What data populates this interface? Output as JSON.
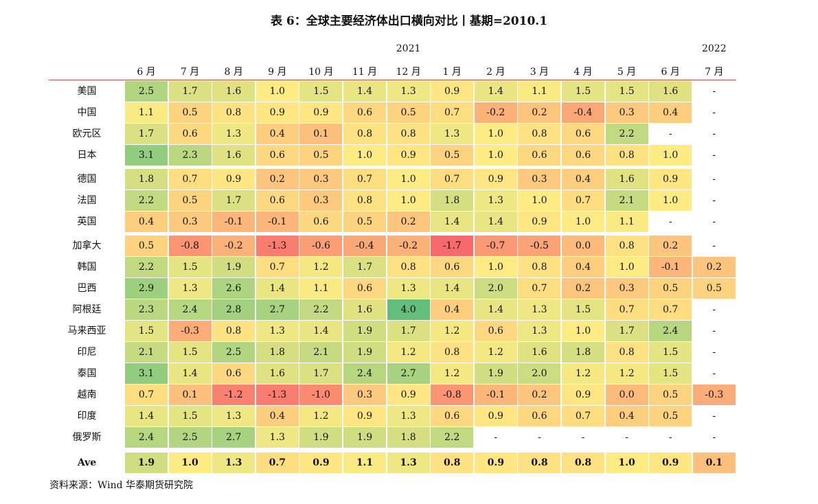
{
  "title": "表 6：全球主要经济体出口横向对比丨基期=2010.1",
  "years": [
    {
      "label": "2021",
      "col": 6
    },
    {
      "label": "2022",
      "col": 13
    }
  ],
  "months": [
    "6 月",
    "7 月",
    "8 月",
    "9 月",
    "10 月",
    "11 月",
    "12 月",
    "1 月",
    "2 月",
    "3 月",
    "4 月",
    "5 月",
    "6 月",
    "7 月"
  ],
  "rows": [
    {
      "name": "美国",
      "values": [
        "2.5",
        "1.7",
        "1.6",
        "1.0",
        "1.5",
        "1.4",
        "1.3",
        "0.9",
        "1.4",
        "1.1",
        "1.5",
        "1.5",
        "1.6",
        "-"
      ]
    },
    {
      "name": "中国",
      "values": [
        "1.1",
        "0.5",
        "0.8",
        "0.9",
        "0.9",
        "0.6",
        "0.5",
        "0.7",
        "-0.2",
        "0.2",
        "-0.4",
        "0.3",
        "0.4",
        "-"
      ]
    },
    {
      "name": "欧元区",
      "values": [
        "1.7",
        "0.6",
        "1.3",
        "0.4",
        "0.1",
        "0.8",
        "0.8",
        "1.3",
        "1.0",
        "0.8",
        "0.6",
        "2.2",
        "-",
        "-"
      ]
    },
    {
      "name": "日本",
      "values": [
        "3.1",
        "2.3",
        "1.6",
        "0.6",
        "0.5",
        "1.0",
        "0.9",
        "0.5",
        "1.0",
        "0.6",
        "0.6",
        "0.8",
        "1.0",
        "-"
      ]
    },
    {
      "name": "德国",
      "values": [
        "1.8",
        "0.7",
        "0.9",
        "0.2",
        "0.3",
        "0.7",
        "1.0",
        "0.7",
        "0.9",
        "0.3",
        "0.4",
        "1.6",
        "0.9",
        "-"
      ]
    },
    {
      "name": "法国",
      "values": [
        "2.2",
        "0.5",
        "1.7",
        "0.6",
        "0.3",
        "0.8",
        "1.0",
        "1.8",
        "1.3",
        "1.0",
        "0.7",
        "2.1",
        "1.0",
        "-"
      ]
    },
    {
      "name": "英国",
      "values": [
        "0.4",
        "0.3",
        "-0.1",
        "-0.1",
        "0.6",
        "0.5",
        "0.2",
        "1.4",
        "1.4",
        "0.9",
        "1.0",
        "1.1",
        "-",
        "-"
      ]
    },
    {
      "name": "加拿大",
      "values": [
        "0.5",
        "-0.8",
        "-0.2",
        "-1.3",
        "-0.6",
        "-0.4",
        "-0.2",
        "-1.7",
        "-0.7",
        "-0.5",
        "0.0",
        "0.8",
        "0.2",
        "-"
      ]
    },
    {
      "name": "韩国",
      "values": [
        "2.2",
        "1.5",
        "1.9",
        "0.7",
        "1.2",
        "1.7",
        "0.8",
        "0.6",
        "1.0",
        "0.8",
        "0.4",
        "1.0",
        "-0.1",
        "0.2"
      ]
    },
    {
      "name": "巴西",
      "values": [
        "2.9",
        "1.3",
        "2.6",
        "1.4",
        "1.1",
        "0.6",
        "1.3",
        "1.4",
        "2.0",
        "0.7",
        "0.2",
        "0.3",
        "0.5",
        "0.5"
      ]
    },
    {
      "name": "阿根廷",
      "values": [
        "2.3",
        "2.4",
        "2.8",
        "2.7",
        "2.2",
        "1.6",
        "4.0",
        "0.4",
        "1.4",
        "1.3",
        "1.5",
        "0.7",
        "0.7",
        "-"
      ]
    },
    {
      "name": "马来西亚",
      "values": [
        "1.5",
        "-0.3",
        "0.8",
        "1.3",
        "1.4",
        "1.9",
        "1.7",
        "1.2",
        "0.6",
        "1.3",
        "1.0",
        "1.7",
        "2.4",
        "-"
      ]
    },
    {
      "name": "印尼",
      "values": [
        "2.1",
        "1.5",
        "2.5",
        "1.8",
        "2.1",
        "1.9",
        "1.2",
        "0.8",
        "1.2",
        "1.6",
        "1.8",
        "0.8",
        "1.5",
        "-"
      ]
    },
    {
      "name": "泰国",
      "values": [
        "3.1",
        "1.4",
        "0.6",
        "1.6",
        "1.7",
        "2.4",
        "2.7",
        "1.2",
        "1.9",
        "2.0",
        "1.2",
        "1.2",
        "1.5",
        "-"
      ]
    },
    {
      "name": "越南",
      "values": [
        "0.7",
        "0.1",
        "-1.2",
        "-1.3",
        "-1.0",
        "0.3",
        "0.9",
        "-0.8",
        "-0.1",
        "0.2",
        "0.9",
        "0.0",
        "0.5",
        "-0.3"
      ]
    },
    {
      "name": "印度",
      "values": [
        "1.4",
        "1.5",
        "1.3",
        "0.4",
        "1.2",
        "0.9",
        "1.3",
        "0.6",
        "0.9",
        "0.6",
        "0.7",
        "0.4",
        "0.5",
        "-"
      ]
    },
    {
      "name": "俄罗斯",
      "values": [
        "2.4",
        "2.5",
        "2.7",
        "1.3",
        "1.9",
        "1.9",
        "1.8",
        "2.2",
        "-",
        "-",
        "-",
        "-",
        "-",
        "-"
      ]
    }
  ],
  "average": {
    "name": "Ave",
    "values": [
      "1.9",
      "1.0",
      "1.3",
      "0.7",
      "0.9",
      "1.1",
      "1.3",
      "0.8",
      "0.9",
      "0.8",
      "0.8",
      "1.0",
      "0.9",
      "0.1"
    ]
  },
  "source": "资料来源：Wind  华泰期货研究院",
  "colors": {
    "heat_min": "#f8696b",
    "heat_mid": "#ffeb84",
    "heat_max": "#63be7b",
    "header_line": "#c0504d"
  }
}
